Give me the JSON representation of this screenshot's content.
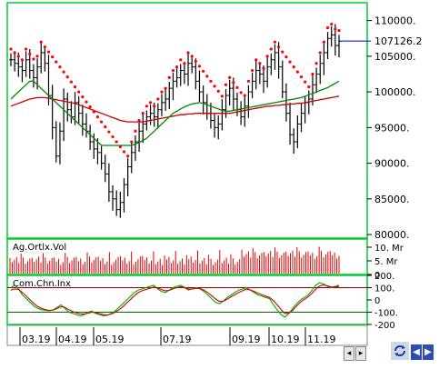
{
  "colors": {
    "border": "#00cc33",
    "bars": "#000000",
    "sar": "#ff0000",
    "ma_fast": "#008800",
    "ma_slow": "#cc0000",
    "volume": "#e00000",
    "cci_green": "#00aa00",
    "cci_red": "#cc0000",
    "current_line": "#0000cc"
  },
  "chart_data": [
    {
      "type": "line",
      "panel": "price",
      "y_ticks": [
        "110000.",
        "105000.",
        "100000.",
        "95000.",
        "90000.",
        "85000.",
        "80000."
      ],
      "ylim": [
        79500,
        112500
      ],
      "current_value": "107126.2",
      "x_ticks": [
        "03.19",
        "04.19",
        "05.19",
        "07.19",
        "09.19",
        "10.19",
        "11.19"
      ],
      "series": [
        {
          "values": [
            104500,
            104000,
            103500,
            103000,
            104500,
            103000,
            102000,
            103500,
            105500,
            104000,
            99500,
            95000,
            91000,
            94500,
            99000,
            97500,
            96500,
            98500,
            97000,
            95500,
            94500,
            93000,
            92000,
            91500,
            90000,
            88500,
            86000,
            85000,
            83500,
            84500,
            87000,
            89500,
            91500,
            93000,
            94500,
            95500,
            96500,
            97000,
            96500,
            97500,
            98500,
            99000,
            100500,
            101500,
            102000,
            103000,
            102500,
            104000,
            103500,
            101500,
            100000,
            98500,
            97000,
            96000,
            95000,
            95500,
            97500,
            99500,
            100500,
            99000,
            97500,
            96500,
            98000,
            100000,
            101500,
            103000,
            102500,
            101500,
            103500,
            104500,
            105500,
            103500,
            100000,
            97000,
            94000,
            93000,
            95500,
            97000,
            98500,
            99000,
            101000,
            102500,
            104000,
            105500,
            107500,
            108000,
            106500,
            107100
          ]
        },
        {
          "values": [
            99000,
            99500,
            100000,
            100500,
            101000,
            101500,
            101500,
            101000,
            100500,
            100000,
            99500,
            99000,
            98500,
            98000,
            97500,
            97000,
            96500,
            96000,
            95500,
            95000,
            94500,
            94000,
            93500,
            93000,
            92500,
            92500,
            92500,
            92500,
            92500,
            92500,
            92500,
            92500,
            92500,
            92700,
            92900,
            93200,
            93500,
            94000,
            94500,
            95000,
            95500,
            96000,
            96500,
            97000,
            97300,
            97600,
            97900,
            98100,
            98300,
            98400,
            98500,
            98400,
            98200,
            98000,
            97800,
            97600,
            97400,
            97300,
            97300,
            97400,
            97500,
            97600,
            97700,
            97800,
            97900,
            98000,
            98100,
            98200,
            98300,
            98400,
            98500,
            98600,
            98700,
            98800,
            98900,
            99000,
            99100,
            99200,
            99400,
            99600,
            99800,
            100000,
            100200,
            100400,
            100600,
            100900,
            101200,
            101500
          ]
        },
        {
          "values": [
            98000,
            98200,
            98400,
            98600,
            98800,
            99000,
            99100,
            99200,
            99200,
            99200,
            99100,
            99000,
            98900,
            98800,
            98700,
            98600,
            98500,
            98400,
            98200,
            98000,
            97800,
            97600,
            97400,
            97200,
            97000,
            96800,
            96600,
            96400,
            96200,
            96000,
            95900,
            95800,
            95800,
            95800,
            95800,
            95800,
            95900,
            96000,
            96100,
            96200,
            96300,
            96400,
            96500,
            96600,
            96700,
            96800,
            96800,
            96900,
            96900,
            97000,
            97000,
            97000,
            97000,
            97000,
            97000,
            97000,
            97000,
            97000,
            97000,
            97100,
            97200,
            97300,
            97400,
            97500,
            97600,
            97700,
            97800,
            97900,
            98000,
            98000,
            98100,
            98100,
            98200,
            98200,
            98300,
            98300,
            98400,
            98400,
            98500,
            98600,
            98700,
            98800,
            98900,
            99000,
            99100,
            99200,
            99300,
            99400
          ]
        }
      ]
    },
    {
      "type": "bar",
      "panel": "volume",
      "title": "Ag.Ortlx.Vol",
      "y_ticks": [
        "10. Mr",
        "5. Mr",
        "0"
      ],
      "ylim": [
        0,
        13000000
      ]
    },
    {
      "type": "line",
      "panel": "oscillator",
      "title": "Com.Chn.Inx",
      "y_ticks": [
        "200.",
        "100.",
        "0",
        "-100.",
        "-200"
      ],
      "ylim": [
        -200,
        200
      ],
      "series": [
        {
          "values": [
            100,
            120,
            90,
            40,
            10,
            -20,
            -50,
            -70,
            -80,
            -85,
            -90,
            -80,
            -60,
            -40,
            -70,
            -100,
            -110,
            -120,
            -130,
            -120,
            -100,
            -90,
            -110,
            -120,
            -130,
            -125,
            -110,
            -90,
            -60,
            -30,
            0,
            30,
            60,
            80,
            90,
            100,
            110,
            120,
            90,
            70,
            60,
            80,
            100,
            110,
            120,
            100,
            80,
            90,
            100,
            90,
            70,
            40,
            10,
            -20,
            -30,
            -10,
            20,
            40,
            60,
            80,
            90,
            100,
            80,
            60,
            40,
            30,
            20,
            10,
            -40,
            -80,
            -120,
            -140,
            -110,
            -70,
            -30,
            0,
            20,
            40,
            80,
            120,
            140,
            130,
            110,
            100,
            110,
            120
          ]
        },
        {
          "values": [
            80,
            90,
            85,
            60,
            30,
            0,
            -30,
            -55,
            -70,
            -80,
            -85,
            -82,
            -70,
            -55,
            -60,
            -80,
            -95,
            -105,
            -115,
            -115,
            -108,
            -100,
            -105,
            -112,
            -120,
            -122,
            -115,
            -100,
            -80,
            -55,
            -25,
            5,
            35,
            60,
            75,
            85,
            95,
            105,
            98,
            85,
            75,
            78,
            90,
            100,
            108,
            102,
            90,
            90,
            95,
            92,
            80,
            60,
            35,
            8,
            -12,
            -10,
            5,
            25,
            42,
            60,
            75,
            88,
            82,
            70,
            55,
            42,
            30,
            20,
            -5,
            -40,
            -80,
            -110,
            -108,
            -85,
            -50,
            -18,
            5,
            25,
            55,
            90,
            115,
            122,
            115,
            105,
            105,
            112
          ]
        }
      ]
    }
  ]
}
